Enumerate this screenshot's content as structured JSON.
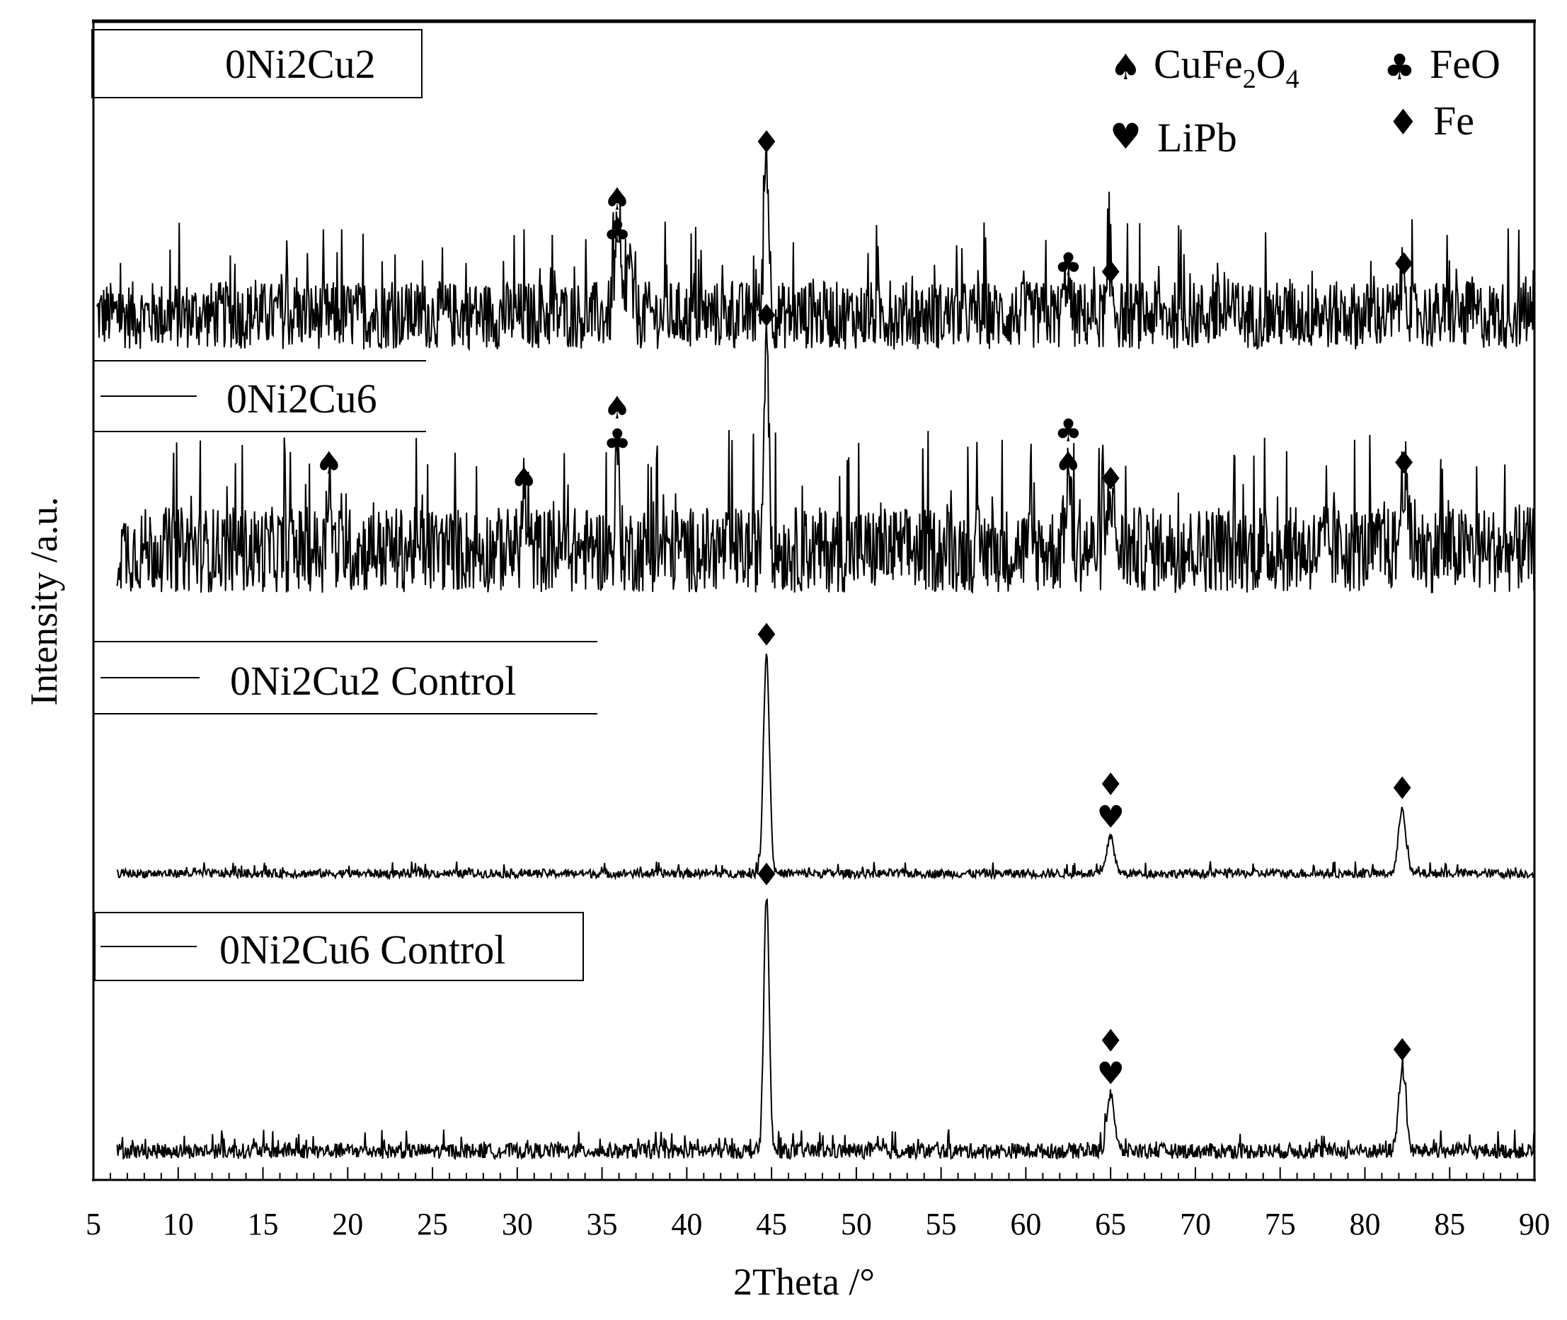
{
  "chart_data": {
    "type": "line",
    "xlabel": "2Theta /°",
    "ylabel": "Intensity /a.u.",
    "xlim": [
      5,
      90
    ],
    "x_ticks": [
      "5",
      "10",
      "15",
      "20",
      "25",
      "30",
      "35",
      "40",
      "45",
      "50",
      "55",
      "60",
      "65",
      "70",
      "75",
      "80",
      "85",
      "90"
    ],
    "grid": false,
    "legend_position": "top-right",
    "phase_legend": [
      {
        "symbol": "spade-icon",
        "glyph": "♠",
        "label": "CuFe",
        "sub1": "2",
        "mid": "O",
        "sub2": "4"
      },
      {
        "symbol": "club-icon",
        "glyph": "♣",
        "label": "FeO"
      },
      {
        "symbol": "heart-icon",
        "glyph": "♥",
        "label": "LiPb"
      },
      {
        "symbol": "diamond-icon",
        "glyph": "♦",
        "label": "Fe"
      }
    ],
    "series": [
      {
        "name": "0Ni2Cu2",
        "noise": 0.42,
        "peaks": [
          {
            "x": 35.9,
            "height": 0.45,
            "width": 0.25
          },
          {
            "x": 36.6,
            "height": 0.35,
            "width": 0.2
          },
          {
            "x": 44.7,
            "height": 1.0,
            "width": 0.2
          },
          {
            "x": 62.4,
            "height": 0.25,
            "width": 0.2
          },
          {
            "x": 65.0,
            "height": 0.2,
            "width": 0.25
          },
          {
            "x": 82.3,
            "height": 0.25,
            "width": 0.25
          }
        ],
        "markers": [
          {
            "x": 35.9,
            "symbols": [
              "♣",
              "♠"
            ]
          },
          {
            "x": 44.7,
            "symbols": [
              "♦"
            ]
          },
          {
            "x": 62.5,
            "symbols": [
              "♣"
            ]
          },
          {
            "x": 65.0,
            "symbols": [
              "♦"
            ]
          },
          {
            "x": 82.3,
            "symbols": [
              "♦"
            ]
          }
        ]
      },
      {
        "name": "0Ni2Cu6",
        "noise": 0.38,
        "peaks": [
          {
            "x": 18.9,
            "height": 0.35,
            "width": 0.15
          },
          {
            "x": 30.4,
            "height": 0.28,
            "width": 0.15
          },
          {
            "x": 35.9,
            "height": 0.45,
            "width": 0.15
          },
          {
            "x": 44.7,
            "height": 1.0,
            "width": 0.2
          },
          {
            "x": 62.5,
            "height": 0.35,
            "width": 0.2
          },
          {
            "x": 65.0,
            "height": 0.28,
            "width": 0.25
          },
          {
            "x": 82.3,
            "height": 0.35,
            "width": 0.25
          }
        ],
        "markers": [
          {
            "x": 18.9,
            "symbols": [
              "♠"
            ]
          },
          {
            "x": 30.4,
            "symbols": [
              "♠"
            ]
          },
          {
            "x": 35.9,
            "symbols": [
              "♣",
              "♠"
            ]
          },
          {
            "x": 44.7,
            "symbols": [
              "♦"
            ]
          },
          {
            "x": 62.5,
            "symbols": [
              "♠",
              "♣"
            ]
          },
          {
            "x": 65.0,
            "symbols": [
              "♦"
            ]
          },
          {
            "x": 82.3,
            "symbols": [
              "♦"
            ]
          }
        ]
      },
      {
        "name": "0Ni2Cu2 Control",
        "noise": 0.04,
        "peaks": [
          {
            "x": 44.7,
            "height": 1.0,
            "width": 0.25
          },
          {
            "x": 65.0,
            "height": 0.17,
            "width": 0.3
          },
          {
            "x": 82.2,
            "height": 0.3,
            "width": 0.3
          }
        ],
        "markers": [
          {
            "x": 44.7,
            "symbols": [
              "♦"
            ]
          },
          {
            "x": 65.0,
            "symbols": [
              "♥",
              "♦"
            ]
          },
          {
            "x": 82.2,
            "symbols": [
              "♦"
            ]
          }
        ]
      },
      {
        "name": "0Ni2Cu6 Control",
        "noise": 0.06,
        "peaks": [
          {
            "x": 44.7,
            "height": 1.0,
            "width": 0.22
          },
          {
            "x": 65.0,
            "height": 0.23,
            "width": 0.3
          },
          {
            "x": 82.2,
            "height": 0.32,
            "width": 0.3
          }
        ],
        "markers": [
          {
            "x": 44.7,
            "symbols": [
              "♦"
            ]
          },
          {
            "x": 65.0,
            "symbols": [
              "♥",
              "♦"
            ]
          },
          {
            "x": 82.2,
            "symbols": [
              "♦"
            ]
          }
        ]
      }
    ]
  }
}
